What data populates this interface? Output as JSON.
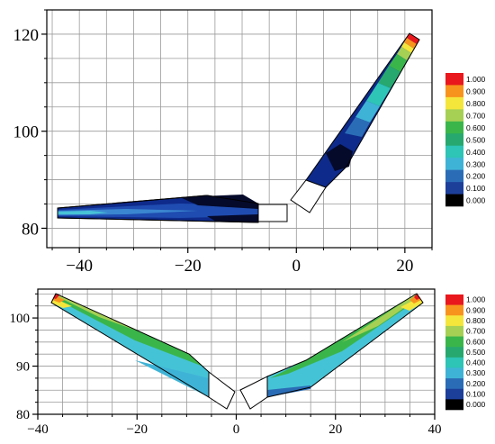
{
  "chart_data": [
    {
      "type": "contour",
      "xlim": [
        -46,
        25
      ],
      "ylim": [
        76,
        125
      ],
      "x_ticks": [
        -40,
        -20,
        0,
        20
      ],
      "y_ticks": [
        80,
        100,
        120
      ],
      "x_tick_labels": [
        "−40",
        "−20",
        "0",
        "20"
      ],
      "y_tick_labels": [
        "80",
        "100",
        "120"
      ],
      "grid": true,
      "colorbar": {
        "levels": [
          "1.000",
          "0.900",
          "0.800",
          "0.700",
          "0.600",
          "0.500",
          "0.400",
          "0.300",
          "0.200",
          "0.100",
          "0.000"
        ]
      }
    },
    {
      "type": "contour",
      "xlim": [
        -40,
        40
      ],
      "ylim": [
        80,
        106
      ],
      "x_ticks": [
        -40,
        -20,
        0,
        20,
        40
      ],
      "y_ticks": [
        80,
        90,
        100
      ],
      "x_tick_labels": [
        "−40",
        "−20",
        "0",
        "20",
        "40"
      ],
      "y_tick_labels": [
        "80",
        "90",
        "100"
      ],
      "grid": true,
      "colorbar": {
        "levels": [
          "1.000",
          "0.900",
          "0.800",
          "0.700",
          "0.600",
          "0.500",
          "0.400",
          "0.300",
          "0.200",
          "0.100",
          "0.000"
        ]
      }
    }
  ],
  "colors": {
    "colorbar_bins": [
      "#e8181c",
      "#f7941d",
      "#f5e63c",
      "#a6d054",
      "#3ab54a",
      "#27a86e",
      "#2ec4b6",
      "#3fb3d6",
      "#2a6db6",
      "#1c3f9a",
      "#000000"
    ],
    "deep_blue": "#0b1d7a",
    "mid_blue": "#2452b0",
    "light_blue": "#3a87d4",
    "cyan": "#45c3d6"
  }
}
